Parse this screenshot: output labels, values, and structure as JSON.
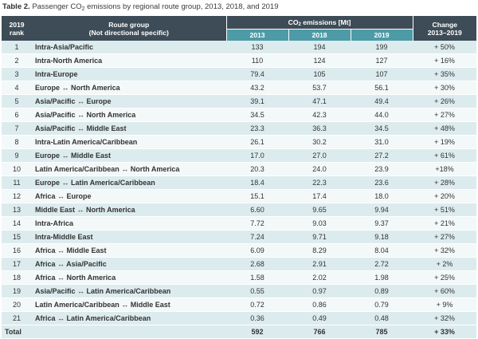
{
  "caption": {
    "label": "Table 2.",
    "text_before": "Passenger CO",
    "text_sub": "2",
    "text_after": " emissions by regional route group, 2013, 2018, and 2019"
  },
  "header": {
    "rank_line1": "2019",
    "rank_line2": "rank",
    "route_line1": "Route group",
    "route_line2": "(Not directional specific)",
    "co2_before": "CO",
    "co2_sub": "2",
    "co2_after": " emissions [Mt]",
    "y2013": "2013",
    "y2018": "2018",
    "y2019": "2019",
    "change_line1": "Change",
    "change_line2": "2013–2019"
  },
  "rows": [
    {
      "rank": "1",
      "route": "Intra-Asia/Pacific",
      "v2013": "133",
      "v2018": "194",
      "v2019": "199",
      "change": "+ 50%"
    },
    {
      "rank": "2",
      "route": "Intra-North America",
      "v2013": "110",
      "v2018": "124",
      "v2019": "127",
      "change": "+ 16%"
    },
    {
      "rank": "3",
      "route": "Intra-Europe",
      "v2013": "79.4",
      "v2018": "105",
      "v2019": "107",
      "change": "+ 35%"
    },
    {
      "rank": "4",
      "route": "Europe ↔ North America",
      "v2013": "43.2",
      "v2018": "53.7",
      "v2019": "56.1",
      "change": "+ 30%"
    },
    {
      "rank": "5",
      "route": "Asia/Pacific ↔ Europe",
      "v2013": "39.1",
      "v2018": "47.1",
      "v2019": "49.4",
      "change": "+ 26%"
    },
    {
      "rank": "6",
      "route": "Asia/Pacific ↔ North America",
      "v2013": "34.5",
      "v2018": "42.3",
      "v2019": "44.0",
      "change": "+ 27%"
    },
    {
      "rank": "7",
      "route": "Asia/Pacific ↔ Middle East",
      "v2013": "23.3",
      "v2018": "36.3",
      "v2019": "34.5",
      "change": "+ 48%"
    },
    {
      "rank": "8",
      "route": "Intra-Latin America/Caribbean",
      "v2013": "26.1",
      "v2018": "30.2",
      "v2019": "31.0",
      "change": "+ 19%"
    },
    {
      "rank": "9",
      "route": "Europe ↔ Middle East",
      "v2013": "17.0",
      "v2018": "27.0",
      "v2019": "27.2",
      "change": "+ 61%"
    },
    {
      "rank": "10",
      "route": "Latin America/Caribbean ↔ North America",
      "v2013": "20.3",
      "v2018": "24.0",
      "v2019": "23.9",
      "change": "+18%"
    },
    {
      "rank": "11",
      "route": "Europe ↔ Latin America/Caribbean",
      "v2013": "18.4",
      "v2018": "22.3",
      "v2019": "23.6",
      "change": "+ 28%"
    },
    {
      "rank": "12",
      "route": "Africa ↔ Europe",
      "v2013": "15.1",
      "v2018": "17.4",
      "v2019": "18.0",
      "change": "+ 20%"
    },
    {
      "rank": "13",
      "route": "Middle East ↔ North America",
      "v2013": "6.60",
      "v2018": "9.65",
      "v2019": "9.94",
      "change": "+ 51%"
    },
    {
      "rank": "14",
      "route": "Intra-Africa",
      "v2013": "7.72",
      "v2018": "9.03",
      "v2019": "9.37",
      "change": "+ 21%"
    },
    {
      "rank": "15",
      "route": "Intra-Middle East",
      "v2013": "7.24",
      "v2018": "9.71",
      "v2019": "9.18",
      "change": "+ 27%"
    },
    {
      "rank": "16",
      "route": "Africa ↔ Middle East",
      "v2013": "6.09",
      "v2018": "8.29",
      "v2019": "8.04",
      "change": "+ 32%"
    },
    {
      "rank": "17",
      "route": "Africa ↔ Asia/Pacific",
      "v2013": "2.68",
      "v2018": "2.91",
      "v2019": "2.72",
      "change": "+ 2%"
    },
    {
      "rank": "18",
      "route": "Africa ↔ North America",
      "v2013": "1.58",
      "v2018": "2.02",
      "v2019": "1.98",
      "change": "+ 25%"
    },
    {
      "rank": "19",
      "route": "Asia/Pacific ↔ Latin America/Caribbean",
      "v2013": "0.55",
      "v2018": "0.97",
      "v2019": "0.89",
      "change": "+ 60%"
    },
    {
      "rank": "20",
      "route": "Latin America/Caribbean ↔ Middle East",
      "v2013": "0.72",
      "v2018": "0.86",
      "v2019": "0.79",
      "change": "+ 9%"
    },
    {
      "rank": "21",
      "route": "Africa ↔ Latin America/Caribbean",
      "v2013": "0.36",
      "v2018": "0.49",
      "v2019": "0.48",
      "change": "+ 32%"
    }
  ],
  "total": {
    "label": "Total",
    "v2013": "592",
    "v2018": "766",
    "v2019": "785",
    "change": "+ 33%"
  },
  "colors": {
    "header_dark": "#3d4c56",
    "header_teal": "#4d9ba6",
    "row_odd": "#dcebee",
    "row_even": "#f3f8f9"
  }
}
